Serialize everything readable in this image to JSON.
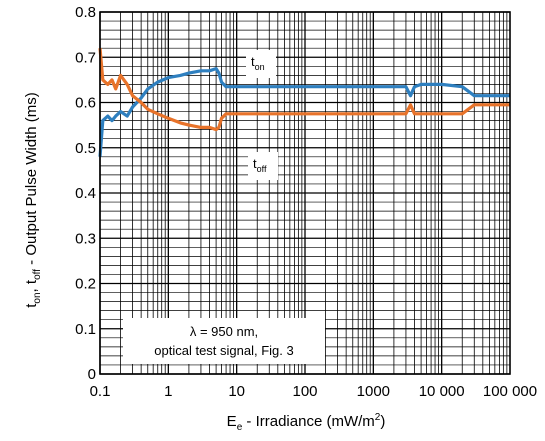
{
  "chart_data": {
    "type": "line",
    "x_scale": "log",
    "xlim": [
      0.1,
      100000
    ],
    "ylim": [
      0,
      0.8
    ],
    "grid": true,
    "x_ticks": [
      {
        "value": 0.1,
        "label": "0.1"
      },
      {
        "value": 1,
        "label": "1"
      },
      {
        "value": 10,
        "label": "10"
      },
      {
        "value": 100,
        "label": "100"
      },
      {
        "value": 1000,
        "label": "1000"
      },
      {
        "value": 10000,
        "label": "10 000"
      },
      {
        "value": 100000,
        "label": "100 000"
      }
    ],
    "y_ticks": [
      {
        "value": 0,
        "label": "0"
      },
      {
        "value": 0.1,
        "label": "0.1"
      },
      {
        "value": 0.2,
        "label": "0.2"
      },
      {
        "value": 0.3,
        "label": "0.3"
      },
      {
        "value": 0.4,
        "label": "0.4"
      },
      {
        "value": 0.5,
        "label": "0.5"
      },
      {
        "value": 0.6,
        "label": "0.6"
      },
      {
        "value": 0.7,
        "label": "0.7"
      },
      {
        "value": 0.8,
        "label": "0.8"
      }
    ],
    "xlabel": {
      "main": "E",
      "sub": "e",
      "rest": " - Irradiance (mW/m",
      "sup": "2",
      "end": ")"
    },
    "ylabel": {
      "t1": "t",
      "s1": "on",
      "t2": ", t",
      "s2": "off",
      "t3": " - Output Pulse Width (ms)"
    },
    "annotation": {
      "line1": "λ = 950 nm,",
      "line2": "optical test signal, Fig. 3"
    },
    "series": [
      {
        "name": "t_on",
        "label": {
          "main": "t",
          "sub": "on"
        },
        "color": "#2e7fbf",
        "x": [
          0.1,
          0.11,
          0.13,
          0.15,
          0.17,
          0.2,
          0.25,
          0.3,
          0.4,
          0.5,
          0.7,
          1,
          1.5,
          2,
          3,
          4,
          5,
          5.5,
          6,
          7,
          10,
          30,
          100,
          1000,
          3000,
          3500,
          4000,
          5000,
          10000,
          20000,
          30000,
          100000
        ],
        "values": [
          0.48,
          0.56,
          0.57,
          0.56,
          0.57,
          0.58,
          0.57,
          0.59,
          0.61,
          0.63,
          0.645,
          0.655,
          0.66,
          0.665,
          0.67,
          0.67,
          0.675,
          0.665,
          0.645,
          0.635,
          0.635,
          0.635,
          0.635,
          0.635,
          0.635,
          0.615,
          0.635,
          0.64,
          0.64,
          0.635,
          0.615,
          0.615
        ]
      },
      {
        "name": "t_off",
        "label": {
          "main": "t",
          "sub": "off"
        },
        "color": "#e8732a",
        "x": [
          0.1,
          0.11,
          0.13,
          0.15,
          0.17,
          0.2,
          0.25,
          0.3,
          0.4,
          0.5,
          0.7,
          1,
          1.5,
          2,
          3,
          4,
          5,
          5.5,
          6,
          7,
          10,
          30,
          100,
          1000,
          3000,
          3500,
          4000,
          5000,
          10000,
          20000,
          30000,
          100000
        ],
        "values": [
          0.72,
          0.65,
          0.64,
          0.65,
          0.63,
          0.66,
          0.64,
          0.615,
          0.6,
          0.585,
          0.575,
          0.565,
          0.555,
          0.55,
          0.545,
          0.545,
          0.54,
          0.545,
          0.565,
          0.575,
          0.575,
          0.575,
          0.575,
          0.575,
          0.575,
          0.595,
          0.575,
          0.575,
          0.575,
          0.575,
          0.595,
          0.595
        ]
      }
    ]
  }
}
